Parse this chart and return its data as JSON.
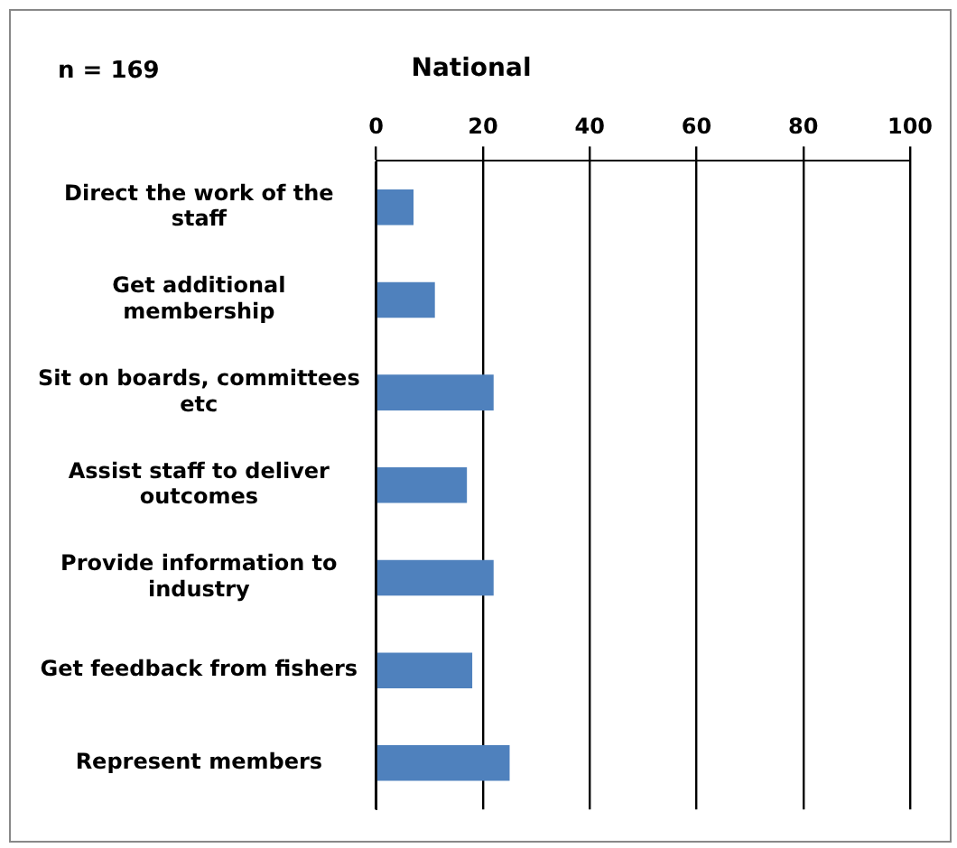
{
  "chart_data": {
    "type": "bar",
    "orientation": "horizontal",
    "title": "National",
    "annotations": [
      "n = 169"
    ],
    "categories": [
      "Direct the work of the staff",
      "Get additional membership",
      "Sit on boards, committees etc",
      "Assist staff to deliver outcomes",
      "Provide information to industry",
      "Get feedback from fishers",
      "Represent members"
    ],
    "values": [
      7,
      11,
      22,
      17,
      22,
      18,
      25
    ],
    "color": "#4f81bd",
    "xlim": [
      0,
      100
    ],
    "xticks": [
      0,
      20,
      40,
      60,
      80,
      100
    ],
    "grid": "x",
    "legend": false
  }
}
